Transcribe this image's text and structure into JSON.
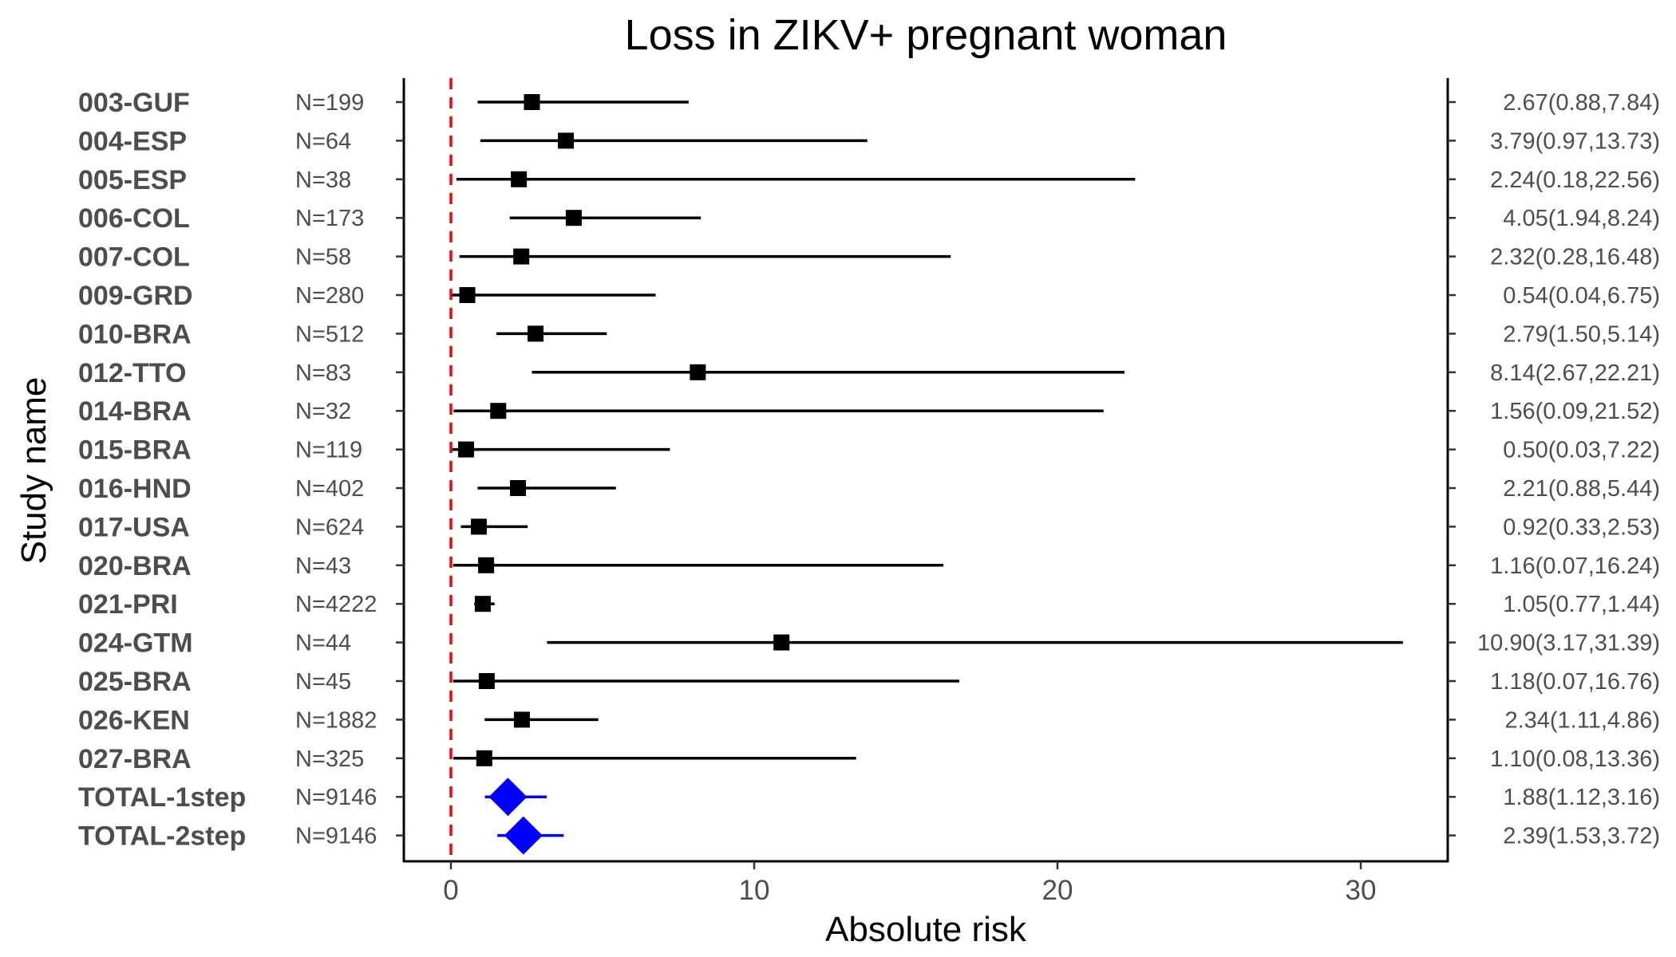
{
  "chart_data": {
    "type": "forest",
    "title": "Loss in ZIKV+ pregnant woman",
    "xlabel": "Absolute risk",
    "ylabel": "Study name",
    "xlim": [
      -1.5,
      33
    ],
    "xticks": [
      0,
      10,
      20,
      30
    ],
    "reference_line": 0,
    "colors": {
      "study": "#000000",
      "total": "#0000ff",
      "reference": "#ff0000"
    },
    "rows": [
      {
        "study": "003-GUF",
        "n": "N=199",
        "estimate": 2.67,
        "lower": 0.88,
        "upper": 7.84,
        "ci_text": "2.67(0.88,7.84)",
        "total": false
      },
      {
        "study": "004-ESP",
        "n": "N=64",
        "estimate": 3.79,
        "lower": 0.97,
        "upper": 13.73,
        "ci_text": "3.79(0.97,13.73)",
        "total": false
      },
      {
        "study": "005-ESP",
        "n": "N=38",
        "estimate": 2.24,
        "lower": 0.18,
        "upper": 22.56,
        "ci_text": "2.24(0.18,22.56)",
        "total": false
      },
      {
        "study": "006-COL",
        "n": "N=173",
        "estimate": 4.05,
        "lower": 1.94,
        "upper": 8.24,
        "ci_text": "4.05(1.94,8.24)",
        "total": false
      },
      {
        "study": "007-COL",
        "n": "N=58",
        "estimate": 2.32,
        "lower": 0.28,
        "upper": 16.48,
        "ci_text": "2.32(0.28,16.48)",
        "total": false
      },
      {
        "study": "009-GRD",
        "n": "N=280",
        "estimate": 0.54,
        "lower": 0.04,
        "upper": 6.75,
        "ci_text": "0.54(0.04,6.75)",
        "total": false
      },
      {
        "study": "010-BRA",
        "n": "N=512",
        "estimate": 2.79,
        "lower": 1.5,
        "upper": 5.14,
        "ci_text": "2.79(1.50,5.14)",
        "total": false
      },
      {
        "study": "012-TTO",
        "n": "N=83",
        "estimate": 8.14,
        "lower": 2.67,
        "upper": 22.21,
        "ci_text": "8.14(2.67,22.21)",
        "total": false
      },
      {
        "study": "014-BRA",
        "n": "N=32",
        "estimate": 1.56,
        "lower": 0.09,
        "upper": 21.52,
        "ci_text": "1.56(0.09,21.52)",
        "total": false
      },
      {
        "study": "015-BRA",
        "n": "N=119",
        "estimate": 0.5,
        "lower": 0.03,
        "upper": 7.22,
        "ci_text": "0.50(0.03,7.22)",
        "total": false
      },
      {
        "study": "016-HND",
        "n": "N=402",
        "estimate": 2.21,
        "lower": 0.88,
        "upper": 5.44,
        "ci_text": "2.21(0.88,5.44)",
        "total": false
      },
      {
        "study": "017-USA",
        "n": "N=624",
        "estimate": 0.92,
        "lower": 0.33,
        "upper": 2.53,
        "ci_text": "0.92(0.33,2.53)",
        "total": false
      },
      {
        "study": "020-BRA",
        "n": "N=43",
        "estimate": 1.16,
        "lower": 0.07,
        "upper": 16.24,
        "ci_text": "1.16(0.07,16.24)",
        "total": false
      },
      {
        "study": "021-PRI",
        "n": "N=4222",
        "estimate": 1.05,
        "lower": 0.77,
        "upper": 1.44,
        "ci_text": "1.05(0.77,1.44)",
        "total": false
      },
      {
        "study": "024-GTM",
        "n": "N=44",
        "estimate": 10.9,
        "lower": 3.17,
        "upper": 31.39,
        "ci_text": "10.90(3.17,31.39)",
        "total": false
      },
      {
        "study": "025-BRA",
        "n": "N=45",
        "estimate": 1.18,
        "lower": 0.07,
        "upper": 16.76,
        "ci_text": "1.18(0.07,16.76)",
        "total": false
      },
      {
        "study": "026-KEN",
        "n": "N=1882",
        "estimate": 2.34,
        "lower": 1.11,
        "upper": 4.86,
        "ci_text": "2.34(1.11,4.86)",
        "total": false
      },
      {
        "study": "027-BRA",
        "n": "N=325",
        "estimate": 1.1,
        "lower": 0.08,
        "upper": 13.36,
        "ci_text": "1.10(0.08,13.36)",
        "total": false
      },
      {
        "study": "TOTAL-1step",
        "n": "N=9146",
        "estimate": 1.88,
        "lower": 1.12,
        "upper": 3.16,
        "ci_text": "1.88(1.12,3.16)",
        "total": true
      },
      {
        "study": "TOTAL-2step",
        "n": "N=9146",
        "estimate": 2.39,
        "lower": 1.53,
        "upper": 3.72,
        "ci_text": "2.39(1.53,3.72)",
        "total": true
      }
    ]
  }
}
